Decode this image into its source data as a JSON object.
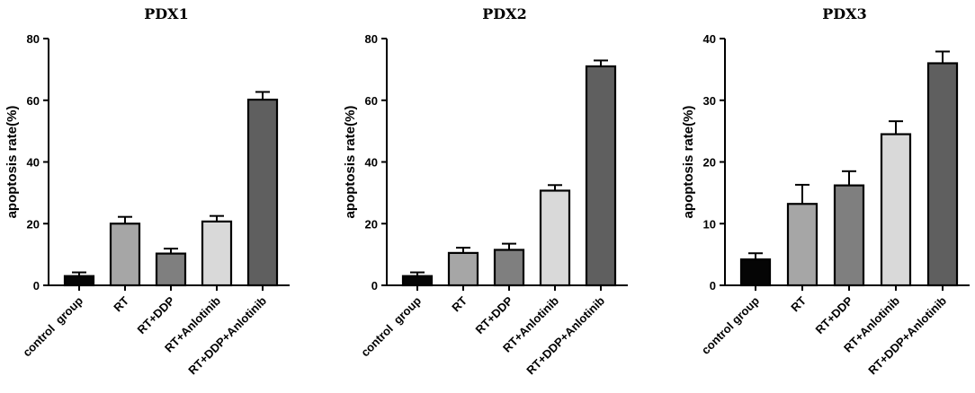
{
  "chart_data": [
    {
      "type": "bar",
      "title": "PDX1",
      "ylabel": "apoptosis rate(%)",
      "ylim": [
        0,
        80
      ],
      "yticks": [
        0,
        20,
        40,
        60,
        80
      ],
      "categories": [
        "control  group",
        "RT",
        "RT+DDP",
        "RT+Anlotinib",
        "RT+DDP+Anlotinib"
      ],
      "values": [
        3,
        20,
        10.3,
        20.7,
        60.2
      ],
      "errors": [
        1.2,
        2.2,
        1.6,
        1.8,
        2.5
      ],
      "colors": [
        "#050505",
        "#a6a6a6",
        "#7f7f7f",
        "#d9d9d9",
        "#5f5f5f"
      ]
    },
    {
      "type": "bar",
      "title": "PDX2",
      "ylabel": "apoptosis rate(%)",
      "ylim": [
        0,
        80
      ],
      "yticks": [
        0,
        20,
        40,
        60,
        80
      ],
      "categories": [
        "control  group",
        "RT",
        "RT+DDP",
        "RT+Anlotinib",
        "RT+DDP+Anlotinib"
      ],
      "values": [
        3,
        10.5,
        11.5,
        30.7,
        71
      ],
      "errors": [
        1.2,
        1.7,
        2,
        1.8,
        1.9
      ],
      "colors": [
        "#050505",
        "#a6a6a6",
        "#7f7f7f",
        "#d9d9d9",
        "#5f5f5f"
      ]
    },
    {
      "type": "bar",
      "title": "PDX3",
      "ylabel": "apoptosis rate(%)",
      "ylim": [
        0,
        40
      ],
      "yticks": [
        0,
        10,
        20,
        30,
        40
      ],
      "categories": [
        "control group",
        "RT",
        "RT+DDP",
        "RT+Anlotinib",
        "RT+DDP+Anlotinib"
      ],
      "values": [
        4.2,
        13.2,
        16.2,
        24.5,
        36
      ],
      "errors": [
        1,
        3.1,
        2.3,
        2.1,
        1.9
      ],
      "colors": [
        "#050505",
        "#a6a6a6",
        "#7f7f7f",
        "#d9d9d9",
        "#5f5f5f"
      ]
    }
  ]
}
